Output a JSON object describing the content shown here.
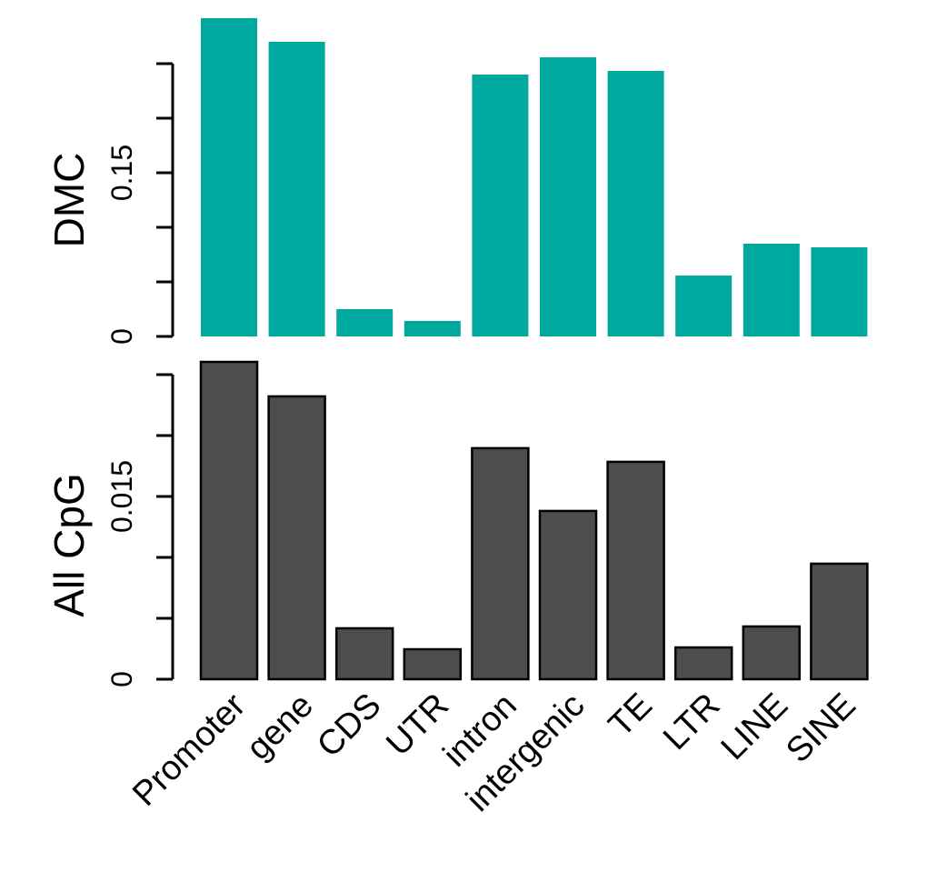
{
  "chart_data": [
    {
      "type": "bar",
      "ylabel": "DMC",
      "color": "#00a99d",
      "stroke": null,
      "values": [
        0.2917,
        0.27,
        0.025,
        0.0142,
        0.24,
        0.2558,
        0.2433,
        0.0558,
        0.085,
        0.0817
      ],
      "ylim": [
        0,
        0.3
      ],
      "yticks": [
        0,
        0.15
      ],
      "minor_yticks": [
        0.05,
        0.1,
        0.2,
        0.25
      ]
    },
    {
      "type": "bar",
      "ylabel": "All CpG",
      "color": "#4d4d4d",
      "stroke": "#000000",
      "categories": [
        "Promoter",
        "gene",
        "CDS",
        "UTR",
        "intron",
        "intergenic",
        "TE",
        "LTR",
        "LINE",
        "SINE"
      ],
      "values": [
        0.02604,
        0.02321,
        0.00418,
        0.00246,
        0.01896,
        0.01381,
        0.01784,
        0.00261,
        0.00433,
        0.00948
      ],
      "ylim": [
        0,
        0.026
      ],
      "yticks": [
        0,
        0.015
      ],
      "minor_yticks": [
        0.005,
        0.01,
        0.02,
        0.025
      ]
    }
  ]
}
